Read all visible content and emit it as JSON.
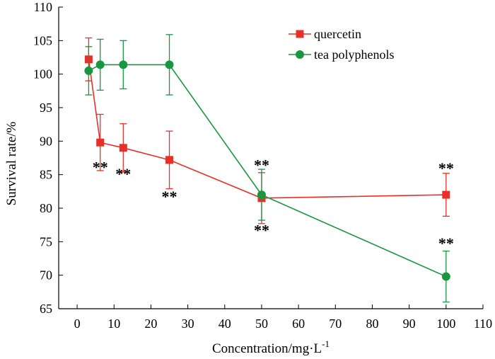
{
  "chart_data": {
    "type": "line",
    "title": "",
    "xlabel": "Concentration/mg·L",
    "xlabel_superscript": "-1",
    "ylabel": "Survival rate/%",
    "xlim": [
      -5,
      110
    ],
    "ylim": [
      65,
      110
    ],
    "xticks": [
      0,
      10,
      20,
      30,
      40,
      50,
      60,
      70,
      80,
      90,
      100,
      110
    ],
    "yticks": [
      65,
      70,
      75,
      80,
      85,
      90,
      95,
      100,
      105,
      110
    ],
    "grid": false,
    "legend_position": "top-right",
    "series": [
      {
        "name": "quercetin",
        "color": "#e8302a",
        "marker": "square",
        "x": [
          3.125,
          6.25,
          12.5,
          25,
          50,
          100
        ],
        "y": [
          102.2,
          89.8,
          89.0,
          87.2,
          81.5,
          82.0
        ],
        "err": [
          3.2,
          4.2,
          3.6,
          4.3,
          3.8,
          3.2
        ]
      },
      {
        "name": "tea polyphenols",
        "color": "#1a9641",
        "marker": "circle",
        "x": [
          3.125,
          6.25,
          12.5,
          25,
          50,
          100
        ],
        "y": [
          100.5,
          101.4,
          101.4,
          101.4,
          82.0,
          69.8
        ],
        "err": [
          3.6,
          3.8,
          3.6,
          4.5,
          3.8,
          3.8
        ]
      }
    ],
    "annotations": [
      {
        "text": "**",
        "x": 6.25,
        "y": 86.2
      },
      {
        "text": "**",
        "x": 12.5,
        "y": 85.2
      },
      {
        "text": "**",
        "x": 25,
        "y": 81.8
      },
      {
        "text": "**",
        "x": 50,
        "y": 86.5
      },
      {
        "text": "**",
        "x": 50,
        "y": 76.8
      },
      {
        "text": "**",
        "x": 100,
        "y": 86.0
      },
      {
        "text": "**",
        "x": 100,
        "y": 74.8
      }
    ]
  }
}
